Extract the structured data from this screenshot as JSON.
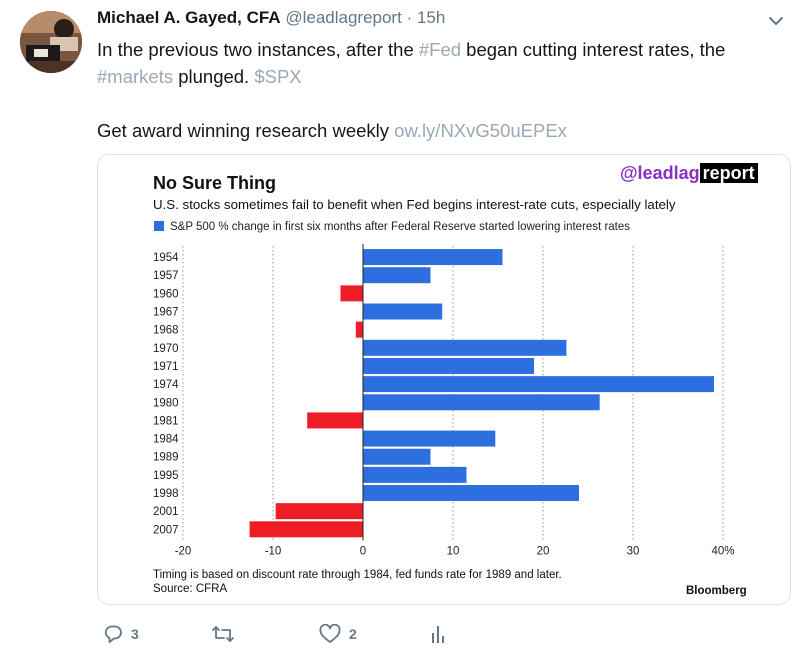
{
  "author": {
    "name": "Michael A. Gayed, CFA",
    "handle": "@leadlagreport",
    "separator": "·",
    "time": "15h"
  },
  "tweet": {
    "line1_pre": "In the previous two instances, after the ",
    "hashtag_fed": "#Fed",
    "line1_post": " began cutting interest rates, the",
    "hashtag_markets": "#markets",
    "line2_mid": " plunged. ",
    "cashtag": "$SPX",
    "line3_pre": "Get award winning research weekly ",
    "link": "ow.ly/NXvG50uEPEx"
  },
  "card": {
    "watermark_a": "@leadlag",
    "watermark_b": "report",
    "footnote": "Timing is based on discount rate through 1984, fed funds rate for 1989 and later.",
    "source": "Source: CFRA",
    "brand": "Bloomberg"
  },
  "chart_data": {
    "type": "bar",
    "orientation": "horizontal",
    "title": "No Sure Thing",
    "subtitle": "U.S. stocks sometimes fail to benefit when Fed begins interest-rate cuts, especially lately",
    "legend": "S&P 500 % change in first six months after Federal Reserve started lowering interest rates",
    "categories": [
      "1954",
      "1957",
      "1960",
      "1967",
      "1968",
      "1970",
      "1971",
      "1974",
      "1980",
      "1981",
      "1984",
      "1989",
      "1995",
      "1998",
      "2001",
      "2007"
    ],
    "values": [
      15.5,
      7.5,
      -2.5,
      8.8,
      -0.8,
      22.6,
      19.0,
      39.0,
      26.3,
      -6.2,
      14.7,
      7.5,
      11.5,
      24.0,
      -9.7,
      -12.6
    ],
    "xlim": [
      -20,
      40
    ],
    "xticks": [
      -20,
      -10,
      0,
      10,
      20,
      30,
      40
    ],
    "xtick_labels": [
      "-20",
      "-10",
      "0",
      "10",
      "20",
      "30",
      "40%"
    ],
    "grid": "vertical dotted",
    "colors": {
      "positive": "#2e6fe0",
      "negative": "#ee1c25"
    }
  },
  "actions": {
    "reply_count": "3",
    "retweet_count": "",
    "like_count": "2"
  },
  "colors": {
    "link": "#9aa8b5",
    "action_icon": "#657786"
  }
}
